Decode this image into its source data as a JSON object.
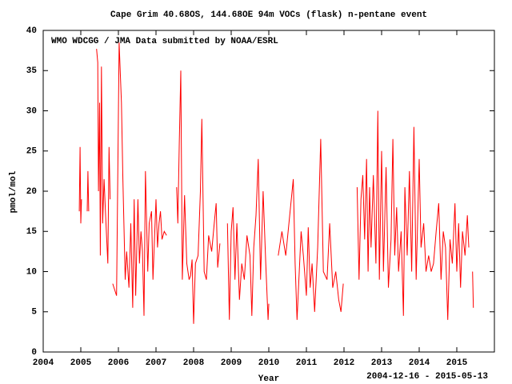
{
  "chart_data": {
    "type": "line",
    "title": "Cape Grim 40.68OS, 144.68OE 94m    VOCs (flask) n-pentane event",
    "annotation": "WMO WDCGG / JMA   Data submitted by NOAA/ESRL",
    "ylabel": "pmol/mol",
    "xlabel": "Year",
    "date_range": "2004-12-16 - 2015-05-13",
    "color": "#ff0000",
    "xlim": [
      2004,
      2016
    ],
    "xticks": [
      2004,
      2005,
      2006,
      2007,
      2008,
      2009,
      2010,
      2011,
      2012,
      2013,
      2014,
      2015
    ],
    "ylim": [
      0,
      40
    ],
    "yticks": [
      0,
      5,
      10,
      15,
      20,
      25,
      30,
      35,
      40
    ],
    "x": [
      2004.96,
      2004.98,
      2005.0,
      2005.02,
      2005.1,
      2005.17,
      2005.19,
      2005.21,
      2005.28,
      2005.35,
      2005.38,
      2005.42,
      2005.45,
      2005.47,
      2005.5,
      2005.52,
      2005.55,
      2005.58,
      2005.62,
      2005.66,
      2005.72,
      2005.75,
      2005.78,
      2005.82,
      2005.85,
      2005.95,
      2006.02,
      2006.08,
      2006.12,
      2006.18,
      2006.22,
      2006.28,
      2006.33,
      2006.38,
      2006.42,
      2006.46,
      2006.52,
      2006.56,
      2006.6,
      2006.64,
      2006.68,
      2006.72,
      2006.78,
      2006.82,
      2006.88,
      2006.92,
      2007.0,
      2007.04,
      2007.08,
      2007.12,
      2007.16,
      2007.22,
      2007.28,
      2007.4,
      2007.55,
      2007.58,
      2007.62,
      2007.66,
      2007.7,
      2007.76,
      2007.82,
      2007.88,
      2007.92,
      2007.96,
      2008.0,
      2008.05,
      2008.12,
      2008.18,
      2008.22,
      2008.28,
      2008.34,
      2008.4,
      2008.48,
      2008.55,
      2008.6,
      2008.64,
      2008.7,
      2008.8,
      2008.9,
      2008.95,
      2009.0,
      2009.05,
      2009.1,
      2009.15,
      2009.22,
      2009.28,
      2009.35,
      2009.42,
      2009.5,
      2009.55,
      2009.6,
      2009.66,
      2009.72,
      2009.78,
      2009.85,
      2009.92,
      2009.98,
      2010.0,
      2010.12,
      2010.25,
      2010.35,
      2010.45,
      2010.65,
      2010.7,
      2010.75,
      2010.8,
      2010.86,
      2010.92,
      2011.0,
      2011.05,
      2011.1,
      2011.15,
      2011.22,
      2011.3,
      2011.38,
      2011.45,
      2011.55,
      2011.62,
      2011.7,
      2011.78,
      2011.86,
      2011.92,
      2011.98,
      2012.15,
      2012.35,
      2012.4,
      2012.45,
      2012.5,
      2012.55,
      2012.6,
      2012.64,
      2012.68,
      2012.72,
      2012.78,
      2012.85,
      2012.9,
      2012.94,
      2013.0,
      2013.05,
      2013.12,
      2013.18,
      2013.25,
      2013.3,
      2013.35,
      2013.4,
      2013.45,
      2013.52,
      2013.58,
      2013.62,
      2013.68,
      2013.74,
      2013.8,
      2013.86,
      2013.92,
      2014.0,
      2014.05,
      2014.12,
      2014.18,
      2014.25,
      2014.32,
      2014.38,
      2014.45,
      2014.52,
      2014.58,
      2014.64,
      2014.7,
      2014.76,
      2014.82,
      2014.88,
      2014.95,
      2015.0,
      2015.05,
      2015.1,
      2015.15,
      2015.22,
      2015.28,
      2015.32,
      2015.37,
      2015.42,
      2015.44
    ],
    "values": [
      17.5,
      25.5,
      16,
      19,
      null,
      17.5,
      22.5,
      17.5,
      null,
      12,
      null,
      37.7,
      36,
      20,
      31,
      12,
      35.5,
      16,
      21.5,
      17,
      11,
      25.5,
      19,
      null,
      8.5,
      7,
      38.5,
      31,
      21.5,
      9,
      12.5,
      8,
      16,
      5.5,
      19,
      7,
      19,
      11,
      15,
      12.5,
      4.5,
      22.5,
      10,
      16,
      17.5,
      9,
      19,
      13,
      16,
      17.5,
      14,
      15,
      14.5,
      null,
      20.5,
      16,
      26,
      35,
      9,
      19.5,
      11,
      9,
      9.5,
      11.5,
      3.5,
      11,
      12,
      20,
      29,
      10,
      9,
      14.5,
      12.5,
      16,
      18.5,
      10.5,
      13.5,
      null,
      16,
      4,
      15,
      18,
      9,
      16,
      6.5,
      11,
      9,
      14.5,
      12,
      4.5,
      13,
      17,
      24,
      9,
      20,
      11,
      4,
      6,
      null,
      12,
      15,
      12,
      21.5,
      11,
      4,
      9,
      15,
      12,
      7,
      15.5,
      8,
      11,
      5,
      13,
      26.5,
      10,
      9,
      16,
      8,
      10,
      6.5,
      5,
      8.5,
      null,
      20.5,
      9,
      19,
      22,
      14,
      24,
      10,
      20.5,
      13,
      22,
      11,
      30,
      9,
      25,
      10,
      23,
      8,
      14,
      26.5,
      12,
      18,
      10,
      15,
      4.5,
      20.5,
      12,
      22.5,
      10,
      28,
      9,
      24,
      13,
      16,
      10,
      12,
      10,
      11,
      15,
      18.5,
      9,
      15,
      13,
      4,
      14,
      11,
      18.5,
      10,
      16,
      8,
      15,
      12,
      17,
      13,
      null,
      10,
      5.5
    ]
  }
}
